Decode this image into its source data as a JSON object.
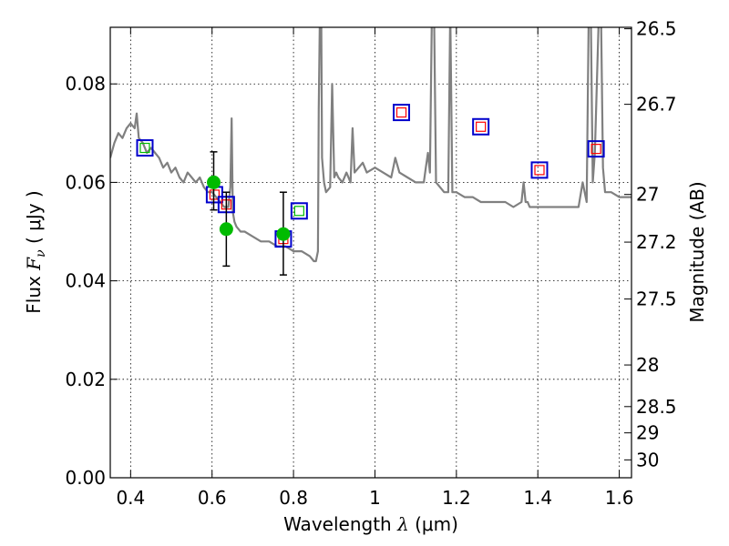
{
  "chart_data": {
    "type": "scatter",
    "xlabel_prefix": "Wavelength  ",
    "xlabel_symbol": "λ",
    "xlabel_suffix": " (μm)",
    "ylabel_prefix": "Flux  ",
    "ylabel_symbol": "F",
    "ylabel_subscript": "ν",
    "ylabel_suffix": "  ( μJy )",
    "y2label": "Magnitude (AB)",
    "xlim": [
      0.35,
      1.63
    ],
    "ylim": [
      0.0,
      0.0915
    ],
    "x_ticks": [
      0.4,
      0.6,
      0.8,
      1.0,
      1.2,
      1.4,
      1.6
    ],
    "x_tick_labels": [
      "0.4",
      "0.6",
      "0.8",
      "1",
      "1.2",
      "1.4",
      "1.6"
    ],
    "y_ticks": [
      0.0,
      0.02,
      0.04,
      0.06,
      0.08
    ],
    "y_tick_labels": [
      "0.00",
      "0.02",
      "0.04",
      "0.06",
      "0.08"
    ],
    "mag_ticks": [
      26.5,
      26.7,
      27,
      27.2,
      27.5,
      28,
      28.5,
      29,
      30
    ],
    "mag_tick_labels": [
      "26.5",
      "26.7",
      "27",
      "27.2",
      "27.5",
      "28",
      "28.5",
      "29",
      "30"
    ],
    "grid": true,
    "colors": {
      "template": "#808080",
      "observed": "#00bb00",
      "error_bar": "#000000",
      "model_box": "#0000cc",
      "model_inner_red": "#ff0000",
      "model_inner_green": "#00bb00"
    },
    "template_spectrum": {
      "x": [
        0.35,
        0.36,
        0.37,
        0.38,
        0.39,
        0.4,
        0.41,
        0.415,
        0.42,
        0.43,
        0.44,
        0.45,
        0.46,
        0.47,
        0.48,
        0.49,
        0.5,
        0.51,
        0.52,
        0.53,
        0.54,
        0.55,
        0.56,
        0.57,
        0.58,
        0.59,
        0.6,
        0.61,
        0.62,
        0.63,
        0.64,
        0.645,
        0.648,
        0.651,
        0.655,
        0.66,
        0.67,
        0.68,
        0.7,
        0.72,
        0.74,
        0.76,
        0.78,
        0.8,
        0.82,
        0.84,
        0.85,
        0.855,
        0.86,
        0.862,
        0.865,
        0.868,
        0.87,
        0.875,
        0.88,
        0.89,
        0.895,
        0.9,
        0.905,
        0.91,
        0.92,
        0.93,
        0.94,
        0.945,
        0.95,
        0.96,
        0.97,
        0.98,
        1.0,
        1.02,
        1.04,
        1.045,
        1.05,
        1.06,
        1.08,
        1.1,
        1.12,
        1.125,
        1.13,
        1.135,
        1.14,
        1.145,
        1.15,
        1.16,
        1.17,
        1.18,
        1.185,
        1.19,
        1.2,
        1.22,
        1.24,
        1.26,
        1.28,
        1.3,
        1.32,
        1.34,
        1.36,
        1.365,
        1.37,
        1.375,
        1.38,
        1.4,
        1.42,
        1.44,
        1.46,
        1.48,
        1.5,
        1.51,
        1.52,
        1.525,
        1.53,
        1.535,
        1.54,
        1.55,
        1.555,
        1.56,
        1.565,
        1.57,
        1.58,
        1.6,
        1.63
      ],
      "y": [
        0.065,
        0.068,
        0.07,
        0.069,
        0.071,
        0.072,
        0.071,
        0.074,
        0.069,
        0.068,
        0.066,
        0.067,
        0.066,
        0.065,
        0.063,
        0.064,
        0.062,
        0.063,
        0.061,
        0.06,
        0.062,
        0.061,
        0.06,
        0.061,
        0.059,
        0.058,
        0.058,
        0.057,
        0.056,
        0.055,
        0.055,
        0.059,
        0.073,
        0.054,
        0.052,
        0.051,
        0.05,
        0.05,
        0.049,
        0.048,
        0.048,
        0.047,
        0.047,
        0.046,
        0.046,
        0.045,
        0.044,
        0.044,
        0.046,
        0.075,
        0.095,
        0.095,
        0.065,
        0.06,
        0.058,
        0.059,
        0.08,
        0.061,
        0.062,
        0.061,
        0.06,
        0.062,
        0.06,
        0.071,
        0.062,
        0.063,
        0.064,
        0.062,
        0.063,
        0.062,
        0.061,
        0.063,
        0.065,
        0.062,
        0.061,
        0.06,
        0.06,
        0.063,
        0.066,
        0.062,
        0.095,
        0.095,
        0.06,
        0.059,
        0.058,
        0.058,
        0.095,
        0.058,
        0.058,
        0.057,
        0.057,
        0.056,
        0.056,
        0.056,
        0.056,
        0.055,
        0.056,
        0.06,
        0.056,
        0.056,
        0.055,
        0.055,
        0.055,
        0.055,
        0.055,
        0.055,
        0.055,
        0.06,
        0.056,
        0.095,
        0.095,
        0.06,
        0.066,
        0.095,
        0.095,
        0.063,
        0.058,
        0.058,
        0.058,
        0.057,
        0.057
      ]
    },
    "observed_points": [
      {
        "x": 0.604,
        "y": 0.06,
        "yerr_low": 0.0056,
        "yerr_high": 0.0062
      },
      {
        "x": 0.635,
        "y": 0.0505,
        "yerr_low": 0.0075,
        "yerr_high": 0.0075
      },
      {
        "x": 0.775,
        "y": 0.0495,
        "yerr_low": 0.0083,
        "yerr_high": 0.0085
      }
    ],
    "model_fluxes": [
      {
        "x": 0.435,
        "y": 0.067,
        "inner": "green"
      },
      {
        "x": 0.606,
        "y": 0.0575,
        "inner": "red"
      },
      {
        "x": 0.635,
        "y": 0.0555,
        "inner": "red"
      },
      {
        "x": 0.775,
        "y": 0.0485,
        "inner": "red"
      },
      {
        "x": 0.814,
        "y": 0.0542,
        "inner": "green"
      },
      {
        "x": 1.065,
        "y": 0.0742,
        "inner": "red"
      },
      {
        "x": 1.26,
        "y": 0.0713,
        "inner": "red"
      },
      {
        "x": 1.404,
        "y": 0.0625,
        "inner": "red"
      },
      {
        "x": 1.543,
        "y": 0.0668,
        "inner": "red"
      }
    ]
  }
}
